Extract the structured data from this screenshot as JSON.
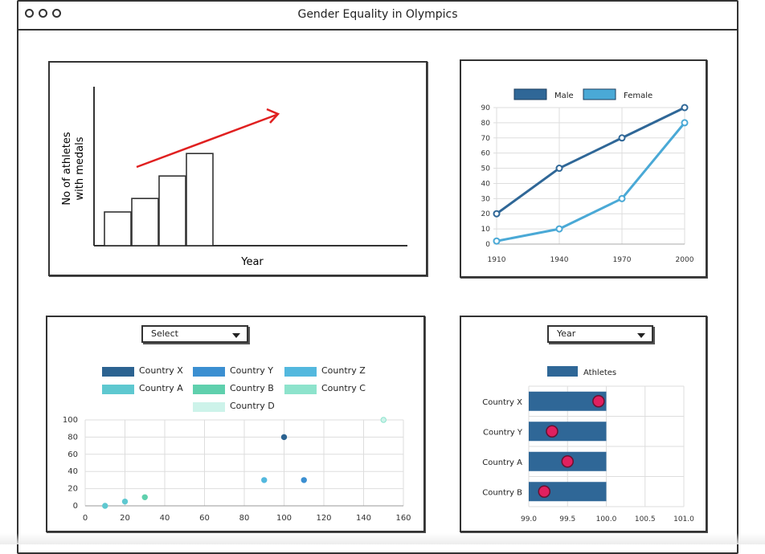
{
  "window": {
    "title": "Gender Equality in Olympics"
  },
  "sketch_chart": {
    "ylabel_line1": "No of athletes",
    "ylabel_line2": "with medals",
    "xlabel": "Year",
    "bars": [
      0.3,
      0.42,
      0.62,
      0.82
    ],
    "trend_color": "#e02020"
  },
  "line_chart": {
    "legend": [
      "Male",
      "Female"
    ],
    "colors": [
      "#2f6797",
      "#4aa9d6"
    ]
  },
  "scatter_panel": {
    "select_label": "Select",
    "legend": [
      {
        "name": "Country X",
        "color": "#2c6391"
      },
      {
        "name": "Country Y",
        "color": "#3b8fd1"
      },
      {
        "name": "Country Z",
        "color": "#53b8de"
      },
      {
        "name": "Country A",
        "color": "#5ec8d0"
      },
      {
        "name": "Country B",
        "color": "#5fd0ad"
      },
      {
        "name": "Country C",
        "color": "#8de3cc"
      },
      {
        "name": "Country D",
        "color": "#cdf3ea"
      }
    ]
  },
  "bar_panel": {
    "year_label": "Year",
    "legend": "Athletes",
    "bar_color": "#2f6797",
    "marker_color": "#e0205f"
  },
  "chart_data": [
    {
      "type": "line",
      "x": [
        1910,
        1940,
        1970,
        2000
      ],
      "xticks": [
        "1910",
        "1940",
        "1970",
        "2000"
      ],
      "ylim": [
        0,
        90
      ],
      "yticks": [
        0,
        10,
        20,
        30,
        40,
        50,
        60,
        70,
        80,
        90
      ],
      "series": [
        {
          "name": "Male",
          "values": [
            20,
            50,
            70,
            90
          ]
        },
        {
          "name": "Female",
          "values": [
            2,
            10,
            30,
            80
          ]
        }
      ],
      "legend_position": "top",
      "grid": true
    },
    {
      "type": "scatter",
      "xlim": [
        0,
        160
      ],
      "ylim": [
        0,
        100
      ],
      "xticks": [
        "0",
        "20",
        "40",
        "60",
        "80",
        "100",
        "120",
        "140",
        "160"
      ],
      "yticks": [
        "0",
        "20",
        "40",
        "60",
        "80",
        "100"
      ],
      "points": [
        {
          "x": 10,
          "y": 0,
          "color": "#5ec8d0"
        },
        {
          "x": 20,
          "y": 5,
          "color": "#5ec8d0"
        },
        {
          "x": 30,
          "y": 10,
          "color": "#5fd0ad"
        },
        {
          "x": 90,
          "y": 30,
          "color": "#53b8de"
        },
        {
          "x": 100,
          "y": 80,
          "color": "#2c6391"
        },
        {
          "x": 110,
          "y": 30,
          "color": "#3b8fd1"
        },
        {
          "x": 150,
          "y": 100,
          "color": "#cdf3ea"
        }
      ],
      "grid": true
    },
    {
      "type": "bar",
      "orientation": "horizontal",
      "categories": [
        "Country X",
        "Country Y",
        "Country A",
        "Country B"
      ],
      "series": [
        {
          "name": "Athletes",
          "values": [
            100.0,
            100.0,
            100.0,
            100.0
          ]
        }
      ],
      "markers": [
        99.9,
        99.3,
        99.5,
        99.2
      ],
      "xlim": [
        99.0,
        101.0
      ],
      "xticks": [
        "99.0",
        "99.5",
        "100.0",
        "100.5",
        "101.0"
      ],
      "grid": true
    }
  ]
}
